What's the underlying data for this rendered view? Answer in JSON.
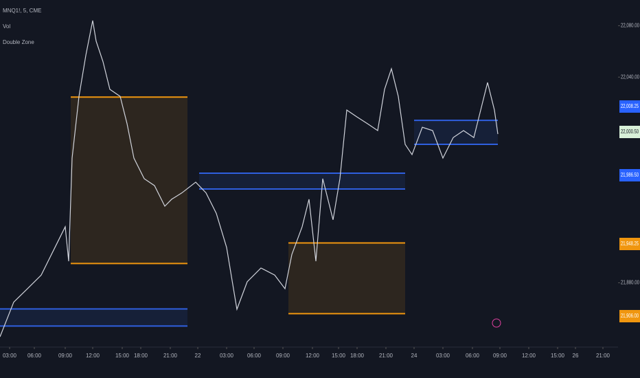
{
  "chart_data": {
    "type": "line",
    "legend": [
      "MNQ1!, 5, CME",
      "Vol",
      "Double Zone"
    ],
    "x": [
      0,
      20,
      40,
      60,
      80,
      95,
      100,
      105,
      115,
      125,
      135,
      140,
      150,
      160,
      175,
      185,
      195,
      210,
      225,
      240,
      250,
      265,
      285,
      300,
      315,
      330,
      340,
      345,
      360,
      380,
      400,
      415,
      425,
      440,
      450,
      460,
      470,
      485,
      495,
      505,
      520,
      535,
      550,
      560,
      570,
      580,
      590,
      600,
      615,
      630,
      645,
      660,
      675,
      690,
      700,
      710,
      720,
      725
    ],
    "series": [
      {
        "color": "#d1d4dc",
        "values": [
          21838,
          21865,
          21875.4,
          21886,
          21907.5,
          21923.6,
          21896.8,
          21977,
          22025,
          22057,
          22084,
          22068,
          22052,
          22030.5,
          22025,
          22003.8,
          21977,
          21961,
          21955.6,
          21939.6,
          21945,
          21950,
          21958.3,
          21950,
          21934,
          21907.5,
          21875.4,
          21859.4,
          21880.8,
          21891.5,
          21886,
          21875.4,
          21902,
          21923.6,
          21945,
          21896.8,
          21961,
          21929,
          21961,
          22014.4,
          22009,
          22003.8,
          21998.4,
          22030.5,
          22046.5,
          22025,
          21987.7,
          21979.7,
          22001,
          21998.4,
          21977,
          21993,
          21998.4,
          21993,
          22014.4,
          22035.8,
          22014.4,
          21995.7
        ]
      }
    ],
    "zones": [
      {
        "color": "#f0960f",
        "x0": 103,
        "x1": 273,
        "top": 22024.5,
        "bottom": 21895
      },
      {
        "color": "#2f5fe0",
        "x0": 290,
        "x1": 590,
        "top": 21965.3,
        "bottom": 21953
      },
      {
        "color": "#2f5fe0",
        "x0": 0,
        "x1": 273,
        "top": 21859.7,
        "bottom": 21846.4
      },
      {
        "color": "#f0960f",
        "x0": 420,
        "x1": 590,
        "top": 21911,
        "bottom": 21856
      },
      {
        "color": "#2f5fe0",
        "x0": 603,
        "x1": 725,
        "top": 22006.4,
        "bottom": 21987.7
      }
    ],
    "xlim": [
      0,
      900
    ],
    "ylim": [
      21830,
      22100
    ],
    "xticks": [
      {
        "value": 14,
        "label": "03:00"
      },
      {
        "value": 50,
        "label": "06:00"
      },
      {
        "value": 95,
        "label": "09:00"
      },
      {
        "value": 135,
        "label": "12:00"
      },
      {
        "value": 178,
        "label": "15:00"
      },
      {
        "value": 205,
        "label": "18:00"
      },
      {
        "value": 248,
        "label": "21:00"
      },
      {
        "value": 288,
        "label": "22"
      },
      {
        "value": 330,
        "label": "03:00"
      },
      {
        "value": 370,
        "label": "06:00"
      },
      {
        "value": 412,
        "label": "09:00"
      },
      {
        "value": 455,
        "label": "12:00"
      },
      {
        "value": 493,
        "label": "15:00"
      },
      {
        "value": 520,
        "label": "18:00"
      },
      {
        "value": 562,
        "label": "21:00"
      },
      {
        "value": 603,
        "label": "24"
      },
      {
        "value": 645,
        "label": "03:00"
      },
      {
        "value": 688,
        "label": "06:00"
      },
      {
        "value": 728,
        "label": "09:00"
      },
      {
        "value": 770,
        "label": "12:00"
      },
      {
        "value": 812,
        "label": "15:00"
      },
      {
        "value": 838,
        "label": "26"
      },
      {
        "value": 878,
        "label": "21:00"
      }
    ],
    "yticks": [
      {
        "value": 22080,
        "label": "22,080.00"
      },
      {
        "value": 22040,
        "label": "22,040.00"
      },
      {
        "value": 21880,
        "label": "21,880.00"
      }
    ],
    "price_tags": [
      {
        "text": "22,008.25",
        "color": "#2962ff"
      },
      {
        "text": "22,000.50",
        "color": "#d8f0d8"
      },
      {
        "text": "21,986.50",
        "color": "#2962ff"
      },
      {
        "text": "21,948.25",
        "color": "#f0960f"
      },
      {
        "text": "21,906.00",
        "color": "#f0960f"
      }
    ]
  }
}
